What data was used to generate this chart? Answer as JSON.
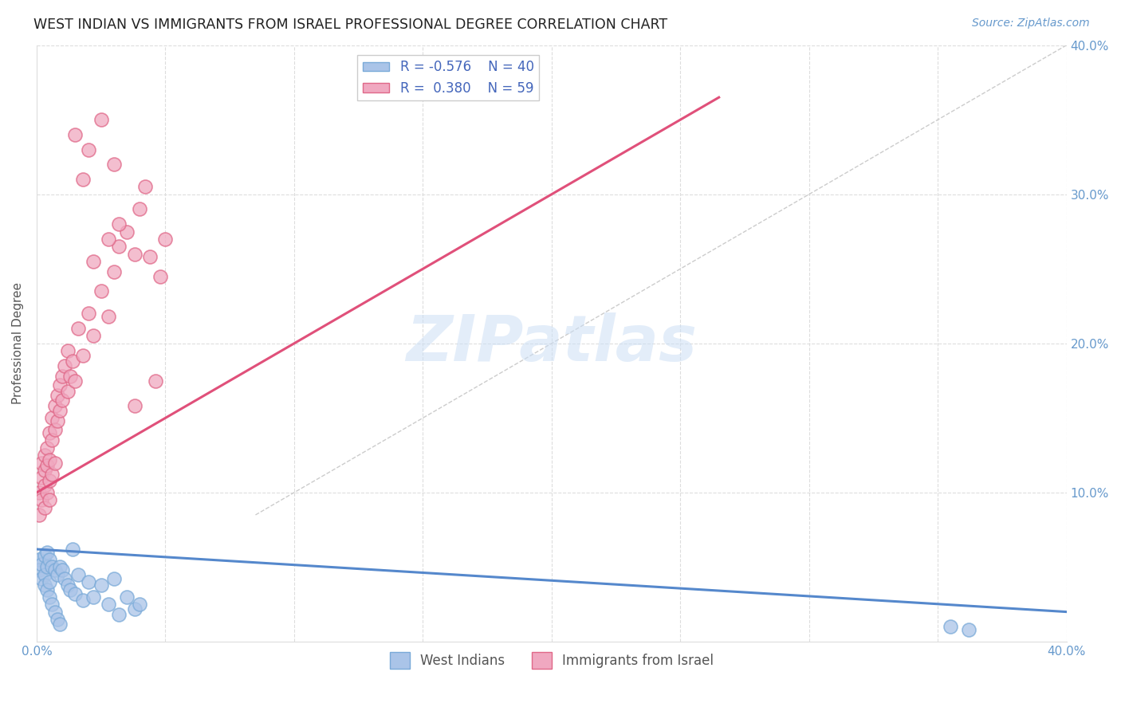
{
  "title": "WEST INDIAN VS IMMIGRANTS FROM ISRAEL PROFESSIONAL DEGREE CORRELATION CHART",
  "source": "Source: ZipAtlas.com",
  "ylabel": "Professional Degree",
  "watermark": "ZIPatlas",
  "legend": {
    "blue_r": "-0.576",
    "blue_n": "40",
    "pink_r": "0.380",
    "pink_n": "59",
    "blue_label": "West Indians",
    "pink_label": "Immigrants from Israel"
  },
  "blue_color": "#aac4e8",
  "pink_color": "#f0a8c0",
  "blue_edge_color": "#7aaad8",
  "pink_edge_color": "#e06888",
  "blue_line_color": "#5588cc",
  "pink_line_color": "#e0507a",
  "diag_line_color": "#cccccc",
  "title_color": "#222222",
  "axis_label_color": "#6699cc",
  "legend_text_color": "#4466bb",
  "xlim": [
    0.0,
    0.4
  ],
  "ylim": [
    0.0,
    0.4
  ],
  "blue_scatter_x": [
    0.001,
    0.001,
    0.002,
    0.002,
    0.003,
    0.003,
    0.003,
    0.004,
    0.004,
    0.004,
    0.005,
    0.005,
    0.005,
    0.006,
    0.006,
    0.007,
    0.007,
    0.008,
    0.008,
    0.009,
    0.009,
    0.01,
    0.011,
    0.012,
    0.013,
    0.014,
    0.015,
    0.016,
    0.018,
    0.02,
    0.022,
    0.025,
    0.028,
    0.03,
    0.032,
    0.035,
    0.038,
    0.04,
    0.355,
    0.362
  ],
  "blue_scatter_y": [
    0.055,
    0.048,
    0.052,
    0.042,
    0.058,
    0.045,
    0.038,
    0.06,
    0.05,
    0.035,
    0.055,
    0.04,
    0.03,
    0.05,
    0.025,
    0.048,
    0.02,
    0.045,
    0.015,
    0.05,
    0.012,
    0.048,
    0.042,
    0.038,
    0.035,
    0.062,
    0.032,
    0.045,
    0.028,
    0.04,
    0.03,
    0.038,
    0.025,
    0.042,
    0.018,
    0.03,
    0.022,
    0.025,
    0.01,
    0.008
  ],
  "pink_scatter_x": [
    0.001,
    0.001,
    0.002,
    0.002,
    0.002,
    0.003,
    0.003,
    0.003,
    0.003,
    0.004,
    0.004,
    0.004,
    0.005,
    0.005,
    0.005,
    0.005,
    0.006,
    0.006,
    0.006,
    0.007,
    0.007,
    0.007,
    0.008,
    0.008,
    0.009,
    0.009,
    0.01,
    0.01,
    0.011,
    0.012,
    0.012,
    0.013,
    0.014,
    0.015,
    0.016,
    0.018,
    0.02,
    0.022,
    0.025,
    0.028,
    0.03,
    0.032,
    0.035,
    0.038,
    0.04,
    0.042,
    0.044,
    0.046,
    0.048,
    0.05,
    0.022,
    0.028,
    0.032,
    0.038,
    0.025,
    0.03,
    0.015,
    0.018,
    0.02
  ],
  "pink_scatter_y": [
    0.1,
    0.085,
    0.11,
    0.095,
    0.12,
    0.105,
    0.115,
    0.125,
    0.09,
    0.13,
    0.118,
    0.1,
    0.14,
    0.122,
    0.108,
    0.095,
    0.15,
    0.135,
    0.112,
    0.158,
    0.142,
    0.12,
    0.165,
    0.148,
    0.172,
    0.155,
    0.178,
    0.162,
    0.185,
    0.168,
    0.195,
    0.178,
    0.188,
    0.175,
    0.21,
    0.192,
    0.22,
    0.205,
    0.235,
    0.218,
    0.248,
    0.265,
    0.275,
    0.158,
    0.29,
    0.305,
    0.258,
    0.175,
    0.245,
    0.27,
    0.255,
    0.27,
    0.28,
    0.26,
    0.35,
    0.32,
    0.34,
    0.31,
    0.33
  ],
  "blue_line_x": [
    0.0,
    0.4
  ],
  "blue_line_y": [
    0.062,
    0.02
  ],
  "pink_line_x": [
    0.0,
    0.265
  ],
  "pink_line_y": [
    0.1,
    0.365
  ],
  "diag_line_x": [
    0.085,
    0.4
  ],
  "diag_line_y": [
    0.085,
    0.4
  ]
}
